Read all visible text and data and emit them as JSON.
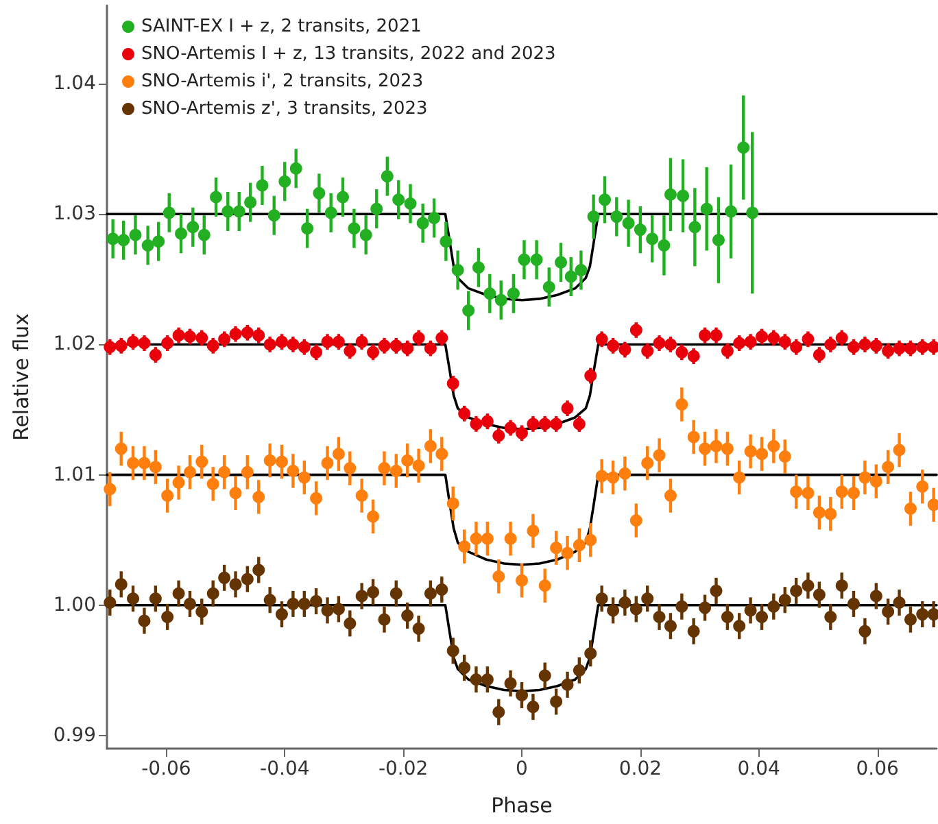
{
  "chart_data": {
    "type": "scatter",
    "xlabel": "Phase",
    "ylabel": "Relative flux",
    "xlim": [
      -0.07,
      0.07
    ],
    "xticks": [
      -0.06,
      -0.04,
      -0.02,
      0,
      0.02,
      0.04,
      0.06
    ],
    "ylim": [
      0.989,
      1.046
    ],
    "yticks": [
      0.99,
      {
        "value": 1,
        "label": "1.00"
      },
      1.01,
      1.02,
      1.03,
      1.04
    ],
    "grid": false,
    "legend": "top left",
    "marker": "circle",
    "x": [
      -0.0695,
      -0.0676,
      -0.0656,
      -0.0637,
      -0.0618,
      -0.0598,
      -0.0579,
      -0.056,
      -0.054,
      -0.0521,
      -0.0502,
      -0.0483,
      -0.0463,
      -0.0444,
      -0.0425,
      -0.0405,
      -0.0386,
      -0.0367,
      -0.0347,
      -0.0328,
      -0.0309,
      -0.029,
      -0.027,
      -0.0251,
      -0.0232,
      -0.0212,
      -0.0193,
      -0.0174,
      -0.0154,
      -0.0135,
      -0.0116,
      -0.0097,
      -0.0077,
      -0.0058,
      -0.0039,
      -0.0019,
      0,
      0.0019,
      0.0039,
      0.0058,
      0.0077,
      0.0097,
      0.0116,
      0.0135,
      0.0154,
      0.0174,
      0.0193,
      0.0212,
      0.0232,
      0.0251,
      0.027,
      0.029,
      0.0309,
      0.0328,
      0.0347,
      0.0367,
      0.0386,
      0.0405,
      0.0425,
      0.0444,
      0.0463,
      0.0483,
      0.0502,
      0.0521,
      0.054,
      0.056,
      0.0579,
      0.0598,
      0.0618,
      0.0637,
      0.0656,
      0.0676,
      0.0695
    ],
    "series": [
      {
        "type": "line",
        "marker": "none",
        "line_style": "solid",
        "color": "#000000",
        "x": [
          -0.07,
          -0.0129,
          -0.0122,
          -0.0115,
          -0.0108,
          -0.009,
          -0.006,
          -0.003,
          0,
          0.003,
          0.006,
          0.009,
          0.0108,
          0.0115,
          0.0122,
          0.0129,
          0.07
        ],
        "values": [
          1.03,
          1.03,
          1.028,
          1.026,
          1.0251,
          1.0243,
          1.0238,
          1.0235,
          1.0234,
          1.0235,
          1.0238,
          1.0243,
          1.0251,
          1.026,
          1.028,
          1.03,
          1.03
        ]
      },
      {
        "type": "line",
        "marker": "none",
        "line_style": "solid",
        "color": "#000000",
        "x": [
          -0.07,
          -0.0129,
          -0.0122,
          -0.0115,
          -0.0108,
          -0.009,
          -0.006,
          -0.003,
          0,
          0.003,
          0.006,
          0.009,
          0.0108,
          0.0115,
          0.0122,
          0.0129,
          0.07
        ],
        "values": [
          1.02,
          1.02,
          1.0181,
          1.0161,
          1.0151,
          1.0144,
          1.0139,
          1.0136,
          1.0135,
          1.0136,
          1.0139,
          1.0144,
          1.0151,
          1.0161,
          1.0181,
          1.02,
          1.02
        ]
      },
      {
        "type": "line",
        "marker": "none",
        "line_style": "solid",
        "color": "#000000",
        "x": [
          -0.07,
          -0.0129,
          -0.0122,
          -0.0115,
          -0.0108,
          -0.009,
          -0.006,
          -0.003,
          0,
          0.003,
          0.006,
          0.009,
          0.0108,
          0.0115,
          0.0122,
          0.0129,
          0.07
        ],
        "values": [
          1.01,
          1.01,
          1.0079,
          1.0059,
          1.0048,
          1.0041,
          1.0035,
          1.0032,
          1.0031,
          1.0032,
          1.0035,
          1.0041,
          1.0048,
          1.0059,
          1.0079,
          1.01,
          1.01
        ]
      },
      {
        "type": "line",
        "marker": "none",
        "line_style": "solid",
        "color": "#000000",
        "x": [
          -0.07,
          -0.0129,
          -0.0122,
          -0.0115,
          -0.0108,
          -0.009,
          -0.006,
          -0.003,
          0,
          0.003,
          0.006,
          0.009,
          0.0108,
          0.0115,
          0.0122,
          0.0129,
          0.07
        ],
        "values": [
          1.0,
          1.0,
          0.998,
          0.996,
          0.9951,
          0.9943,
          0.9938,
          0.9935,
          0.9934,
          0.9935,
          0.9938,
          0.9943,
          0.9951,
          0.996,
          0.998,
          1.0,
          1.0
        ]
      },
      {
        "name": "SAINT-EX I + z, 2 transits, 2021",
        "color": "#22b022",
        "x": [
          -0.069,
          -0.0672,
          -0.0652,
          -0.0631,
          -0.0613,
          -0.0595,
          -0.0575,
          -0.0555,
          -0.0536,
          -0.0516,
          -0.0496,
          -0.0477,
          -0.0458,
          -0.0438,
          -0.0418,
          -0.04,
          -0.0381,
          -0.0362,
          -0.0342,
          -0.0322,
          -0.0302,
          -0.0283,
          -0.0263,
          -0.0245,
          -0.0227,
          -0.0208,
          -0.0188,
          -0.0167,
          -0.0148,
          -0.0128,
          -0.0108,
          -0.009,
          -0.0073,
          -0.0054,
          -0.0035,
          -0.0014,
          0.0004,
          0.0025,
          0.0046,
          0.0066,
          0.0083,
          0.01,
          0.0121,
          0.014,
          0.016,
          0.018,
          0.02,
          0.022,
          0.024,
          0.0251,
          0.0272,
          0.0292,
          0.0312,
          0.0332,
          0.0353,
          0.0374,
          0.0389
        ],
        "values": [
          1.0281,
          1.028,
          1.0284,
          1.0276,
          1.0279,
          1.0301,
          1.0285,
          1.029,
          1.0284,
          1.0313,
          1.0302,
          1.0302,
          1.0309,
          1.0322,
          1.0299,
          1.0325,
          1.0335,
          1.0289,
          1.0316,
          1.0301,
          1.0313,
          1.0289,
          1.0284,
          1.0304,
          1.0329,
          1.0311,
          1.0308,
          1.0293,
          1.0297,
          1.0279,
          1.0257,
          1.0226,
          1.0259,
          1.0239,
          1.0234,
          1.0239,
          1.0265,
          1.0265,
          1.0244,
          1.0263,
          1.0252,
          1.0257,
          1.0298,
          1.0311,
          1.0298,
          1.0293,
          1.0288,
          1.0281,
          1.0276,
          1.0315,
          1.0314,
          1.029,
          1.0304,
          1.028,
          1.0302,
          1.0351,
          1.0301
        ],
        "errors": [
          0.0015,
          0.0015,
          0.0015,
          0.0015,
          0.0015,
          0.0015,
          0.0015,
          0.0015,
          0.0015,
          0.0015,
          0.0015,
          0.0015,
          0.0015,
          0.0015,
          0.0015,
          0.0015,
          0.0015,
          0.0015,
          0.0015,
          0.0015,
          0.0015,
          0.0015,
          0.0015,
          0.0015,
          0.0015,
          0.0015,
          0.0015,
          0.0015,
          0.0015,
          0.0015,
          0.0015,
          0.0015,
          0.0015,
          0.0015,
          0.0015,
          0.0015,
          0.0015,
          0.0015,
          0.0015,
          0.0015,
          0.0015,
          0.0015,
          0.0017,
          0.0018,
          0.0015,
          0.0018,
          0.0018,
          0.0018,
          0.0023,
          0.0028,
          0.0028,
          0.003,
          0.0032,
          0.0033,
          0.0036,
          0.004,
          0.0062
        ]
      },
      {
        "name": "SNO-Artemis I + z, 13 transits, 2022 and 2023",
        "color": "#e8000b",
        "values": [
          1.0198,
          1.0199,
          1.0202,
          1.0201,
          1.0192,
          1.0201,
          1.0207,
          1.0206,
          1.0205,
          1.0199,
          1.0204,
          1.0208,
          1.0209,
          1.0207,
          1.02,
          1.0202,
          1.02,
          1.0198,
          1.0194,
          1.0202,
          1.0202,
          1.0195,
          1.0202,
          1.0194,
          1.0199,
          1.0199,
          1.0197,
          1.0205,
          1.0197,
          1.0205,
          1.017,
          1.0147,
          1.0139,
          1.0141,
          1.013,
          1.0136,
          1.0132,
          1.0139,
          1.0139,
          1.0139,
          1.0151,
          1.0139,
          1.0176,
          1.0204,
          1.0199,
          1.0196,
          1.0211,
          1.0195,
          1.0201,
          1.02,
          1.0194,
          1.0191,
          1.0207,
          1.0207,
          1.0195,
          1.0201,
          1.0202,
          1.0206,
          1.0205,
          1.0202,
          1.0198,
          1.0204,
          1.0192,
          1.02,
          1.0205,
          1.0198,
          1.02,
          1.0199,
          1.0195,
          1.0197,
          1.0197,
          1.0198,
          1.0198
        ],
        "errors": [
          0.0006,
          0.0006,
          0.0006,
          0.0006,
          0.0006,
          0.0006,
          0.0006,
          0.0006,
          0.0006,
          0.0006,
          0.0006,
          0.0006,
          0.0006,
          0.0006,
          0.0006,
          0.0006,
          0.0006,
          0.0006,
          0.0006,
          0.0006,
          0.0006,
          0.0006,
          0.0006,
          0.0006,
          0.0006,
          0.0006,
          0.0006,
          0.0006,
          0.0006,
          0.0006,
          0.0006,
          0.0006,
          0.0006,
          0.0006,
          0.0006,
          0.0006,
          0.0006,
          0.0006,
          0.0006,
          0.0006,
          0.0006,
          0.0006,
          0.0006,
          0.0006,
          0.0006,
          0.0006,
          0.0006,
          0.0006,
          0.0006,
          0.0006,
          0.0006,
          0.0006,
          0.0006,
          0.0006,
          0.0006,
          0.0006,
          0.0006,
          0.0006,
          0.0006,
          0.0006,
          0.0006,
          0.0006,
          0.0006,
          0.0006,
          0.0006,
          0.0006,
          0.0006,
          0.0006,
          0.0006,
          0.0006,
          0.0006,
          0.0006,
          0.0006
        ]
      },
      {
        "name": "SNO-Artemis i', 2 transits, 2023",
        "color": "#ff7f0e",
        "values": [
          1.0089,
          1.012,
          1.0109,
          1.0109,
          1.0106,
          1.0084,
          1.0094,
          1.0102,
          1.011,
          1.0093,
          1.0102,
          1.0086,
          1.0102,
          1.0083,
          1.0111,
          1.011,
          1.0103,
          1.0098,
          1.0082,
          1.0109,
          1.0116,
          1.0105,
          1.0084,
          1.0068,
          1.0105,
          1.0103,
          1.0111,
          1.0107,
          1.0122,
          1.0116,
          1.0078,
          1.0045,
          1.0051,
          1.0051,
          1.0022,
          1.0051,
          1.0019,
          1.0057,
          1.0015,
          1.0044,
          1.004,
          1.0046,
          1.005,
          1.0099,
          1.0098,
          1.0101,
          1.0065,
          1.0109,
          1.0115,
          1.0084,
          1.0154,
          1.0129,
          1.012,
          1.0122,
          1.012,
          1.0098,
          1.0118,
          1.0116,
          1.0122,
          1.0114,
          1.0087,
          1.0086,
          1.0071,
          1.007,
          1.0087,
          1.0086,
          1.0098,
          1.0095,
          1.0106,
          1.0119,
          1.0074,
          1.0091,
          1.0077
        ],
        "errors": [
          0.0013,
          0.0013,
          0.0013,
          0.0013,
          0.0013,
          0.0013,
          0.0013,
          0.0013,
          0.0013,
          0.0013,
          0.0013,
          0.0013,
          0.0013,
          0.0013,
          0.0013,
          0.0013,
          0.0013,
          0.0013,
          0.0013,
          0.0013,
          0.0013,
          0.0013,
          0.0013,
          0.0013,
          0.0013,
          0.0013,
          0.0013,
          0.0013,
          0.0013,
          0.0013,
          0.0013,
          0.0013,
          0.0013,
          0.0013,
          0.0013,
          0.0013,
          0.0013,
          0.0013,
          0.0013,
          0.0013,
          0.0013,
          0.0013,
          0.0013,
          0.0013,
          0.0013,
          0.0013,
          0.0013,
          0.0013,
          0.0013,
          0.0013,
          0.0013,
          0.0013,
          0.0013,
          0.0013,
          0.0013,
          0.0013,
          0.0013,
          0.0013,
          0.0013,
          0.0013,
          0.0013,
          0.0013,
          0.0013,
          0.0013,
          0.0013,
          0.0013,
          0.0013,
          0.0013,
          0.0013,
          0.0013,
          0.0013,
          0.0013,
          0.0013
        ]
      },
      {
        "name": "SNO-Artemis z', 3 transits, 2023",
        "color": "#653403",
        "values": [
          1.0002,
          1.0016,
          1.0005,
          0.9988,
          1.0005,
          0.9991,
          1.0009,
          1.0001,
          0.9995,
          1.0009,
          1.0021,
          1.0016,
          1.002,
          1.0027,
          1.0004,
          0.9993,
          1.0001,
          1.0001,
          1.0003,
          0.9996,
          0.9997,
          0.9986,
          1.0007,
          1.001,
          0.9989,
          1.0009,
          0.9992,
          0.9982,
          1.0009,
          1.0012,
          0.9965,
          0.9952,
          0.9943,
          0.9943,
          0.9918,
          0.994,
          0.9931,
          0.9922,
          0.9946,
          0.9926,
          0.9939,
          0.995,
          0.9963,
          1.0005,
          0.9996,
          1.0002,
          0.9997,
          1.0005,
          0.9991,
          0.9984,
          0.9999,
          0.998,
          0.9998,
          1.0011,
          0.9991,
          0.9984,
          0.9996,
          0.9991,
          0.9999,
          1.0004,
          1.0011,
          1.0015,
          1.0008,
          0.9991,
          1.0015,
          1.0001,
          0.998,
          1.0007,
          0.9995,
          1.0002,
          0.9989,
          0.9993,
          0.9993
        ],
        "errors": [
          0.001,
          0.001,
          0.001,
          0.001,
          0.001,
          0.001,
          0.001,
          0.001,
          0.001,
          0.001,
          0.001,
          0.001,
          0.001,
          0.001,
          0.001,
          0.001,
          0.001,
          0.001,
          0.001,
          0.001,
          0.001,
          0.001,
          0.001,
          0.001,
          0.001,
          0.001,
          0.001,
          0.001,
          0.001,
          0.001,
          0.001,
          0.001,
          0.001,
          0.001,
          0.001,
          0.001,
          0.001,
          0.001,
          0.001,
          0.001,
          0.001,
          0.001,
          0.001,
          0.001,
          0.001,
          0.001,
          0.001,
          0.001,
          0.001,
          0.001,
          0.001,
          0.001,
          0.001,
          0.001,
          0.001,
          0.001,
          0.001,
          0.001,
          0.001,
          0.001,
          0.001,
          0.001,
          0.001,
          0.001,
          0.001,
          0.001,
          0.001,
          0.001,
          0.001,
          0.001,
          0.001,
          0.001,
          0.001
        ]
      }
    ]
  }
}
